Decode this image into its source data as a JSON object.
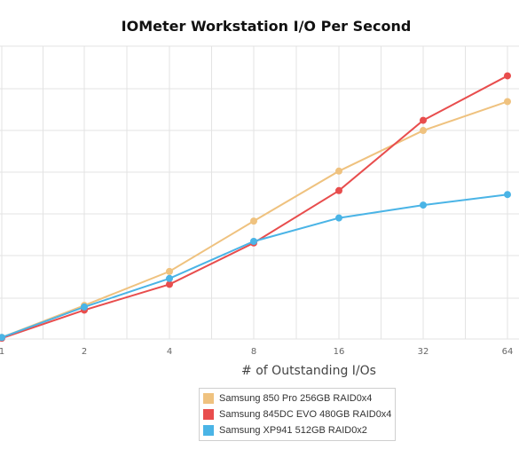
{
  "chart_data": {
    "type": "line",
    "title": "IOMeter Workstation I/O Per Second",
    "xlabel": "# of Outstanding I/Os",
    "ylabel": "",
    "categories": [
      "1",
      "2",
      "4",
      "8",
      "16",
      "32",
      "64"
    ],
    "grid": true,
    "legend_position": "bottom-center",
    "series": [
      {
        "name": "Samsung 850 Pro 256GB RAID0x4",
        "color": "#efc27f",
        "values": [
          0.4,
          8.6,
          17.3,
          30.2,
          43.0,
          53.4,
          60.8
        ]
      },
      {
        "name": "Samsung 845DC EVO 480GB RAID0x4",
        "color": "#e84d4d",
        "values": [
          0.2,
          7.4,
          14.0,
          24.6,
          38.0,
          56.0,
          67.4
        ]
      },
      {
        "name": "Samsung XP941 512GB RAID0x2",
        "color": "#4ab4e6",
        "values": [
          0.4,
          8.2,
          15.5,
          25.0,
          31.0,
          34.3,
          37.0
        ]
      }
    ],
    "ylim": [
      0,
      75
    ]
  }
}
